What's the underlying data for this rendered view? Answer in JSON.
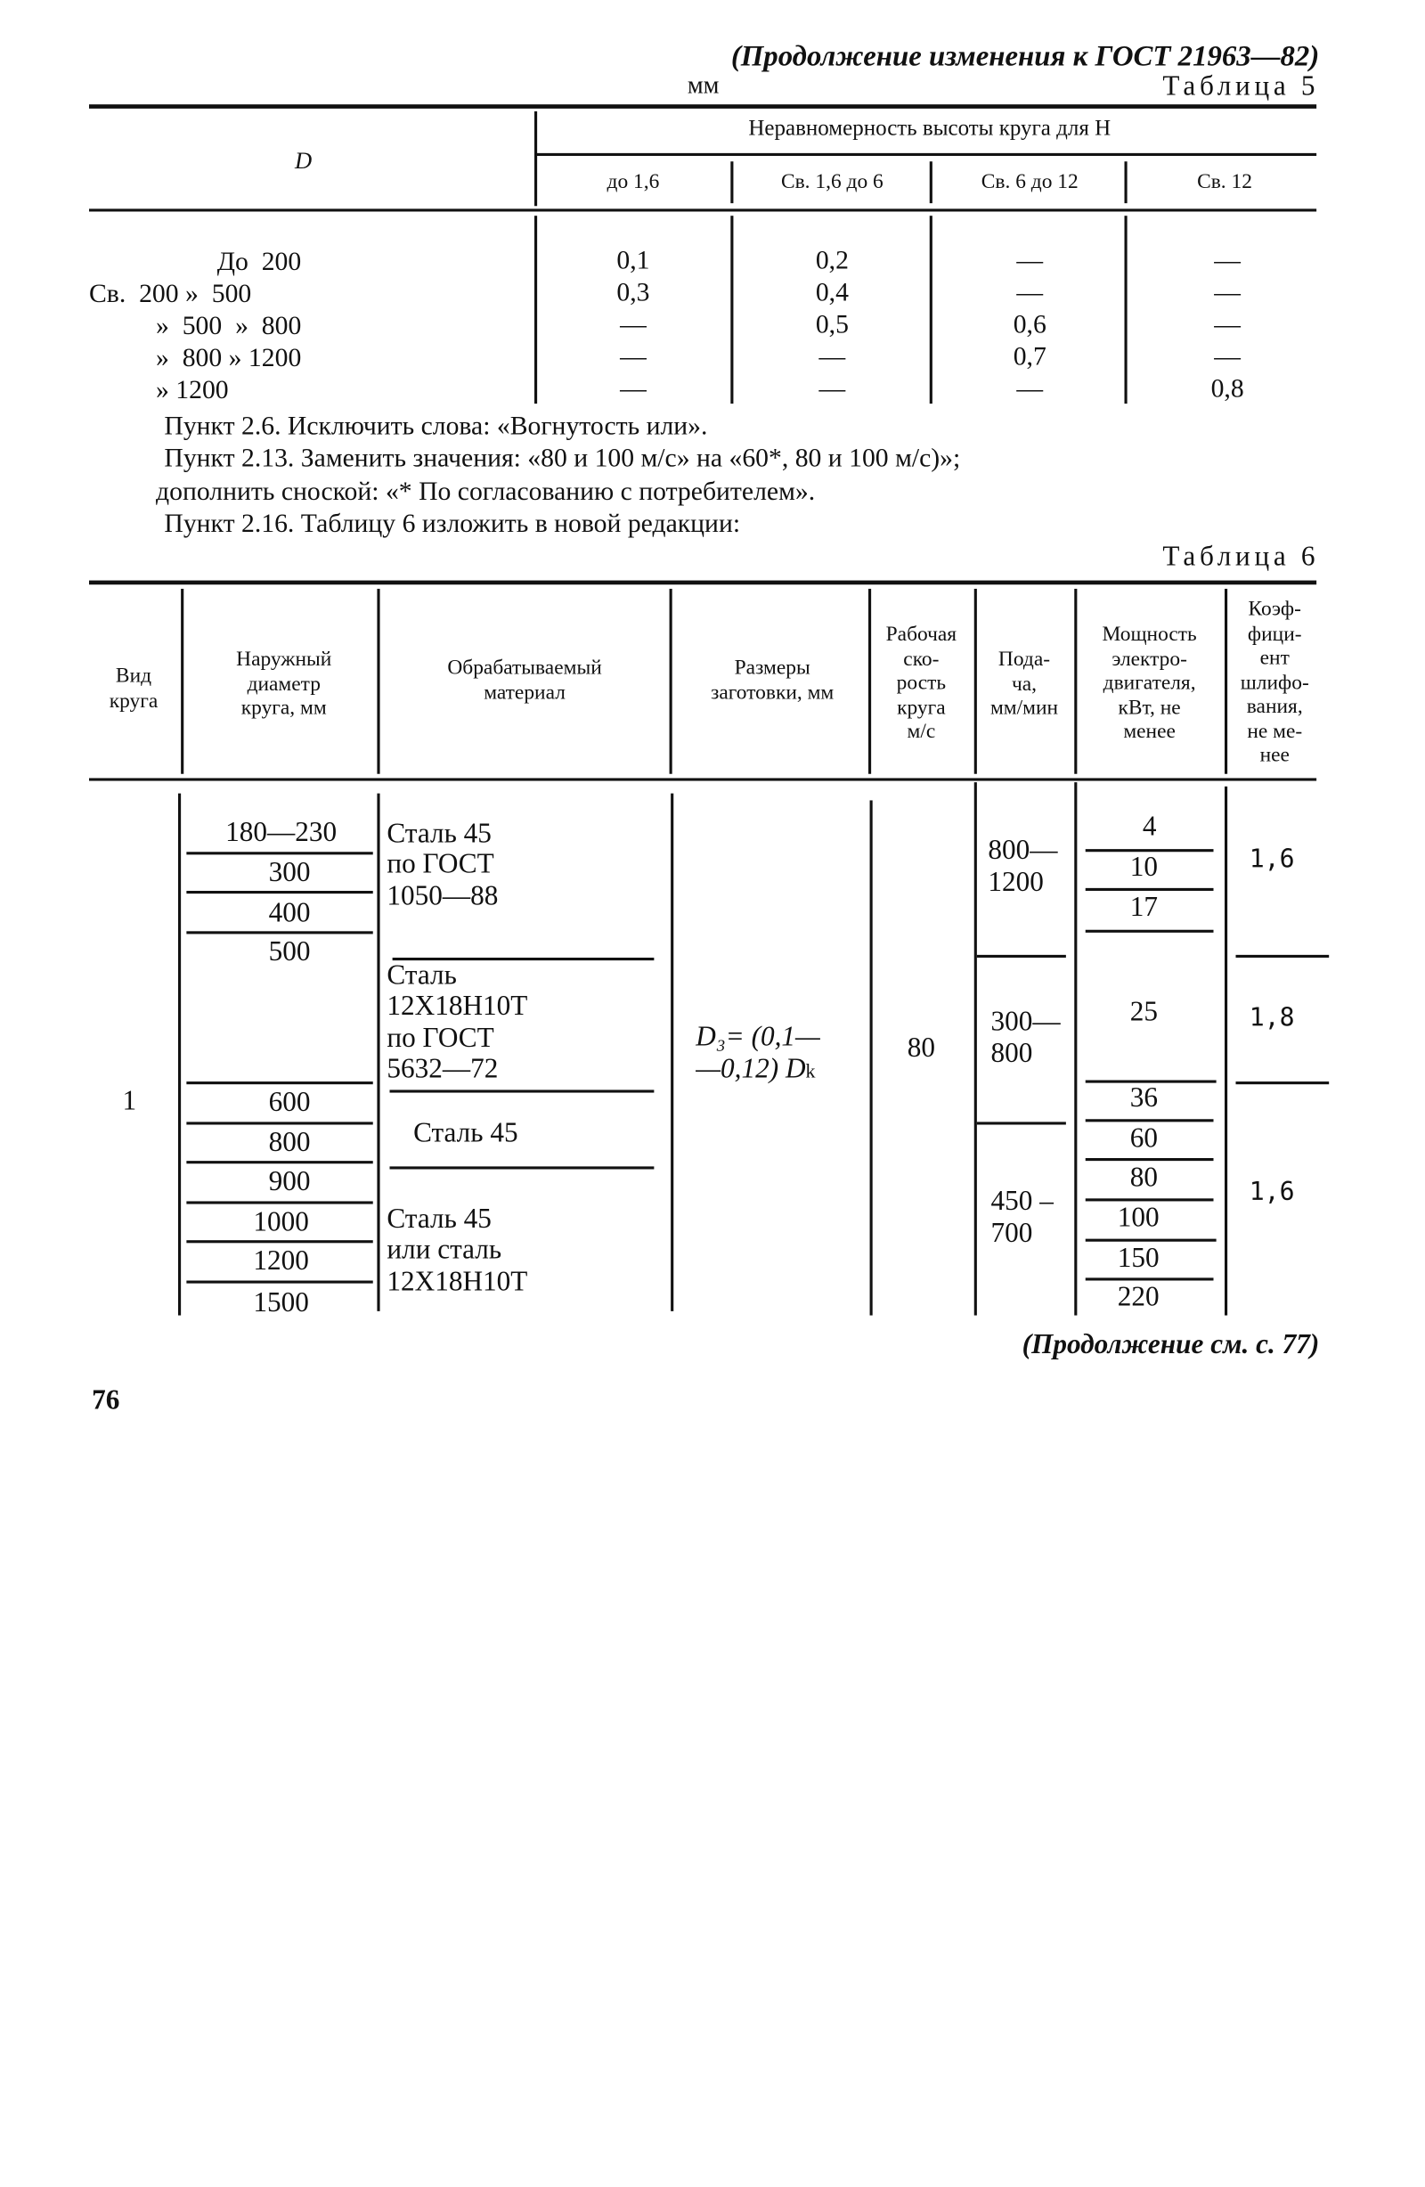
{
  "header": {
    "continuation": "(Продолжение изменения к ГОСТ 21963—82)"
  },
  "table5": {
    "unit": "мм",
    "title": "Таблица 5",
    "col_d": "D",
    "group_header": "Неравномерность высоты круга для H",
    "subheaders": [
      "до 1,6",
      "Св. 1,6 до 6",
      "Св. 6 до 12",
      "Св. 12"
    ],
    "rows": [
      {
        "d": "До  200",
        "v": [
          "0,1",
          "0,2",
          "—",
          "—"
        ]
      },
      {
        "d": "Св.  200 »  500",
        "v": [
          "0,3",
          "0,4",
          "—",
          "—"
        ]
      },
      {
        "d": "»  500  »  800",
        "v": [
          "—",
          "0,5",
          "0,6",
          "—"
        ]
      },
      {
        "d": "»  800 » 1200",
        "v": [
          "—",
          "—",
          "0,7",
          "—"
        ]
      },
      {
        "d": "» 1200",
        "v": [
          "—",
          "—",
          "—",
          "0,8"
        ]
      }
    ]
  },
  "paragraphs": [
    "Пункт 2.6. Исключить слова: «Вогнутость или».",
    "Пункт 2.13. Заменить значения: «80 и 100 м/с» на «60*, 80 и 100 м/с)»;",
    "дополнить сноской: «* По согласованию с потребителем».",
    "Пункт 2.16. Таблицу 6 изложить в новой редакции:"
  ],
  "table6": {
    "title": "Таблица 6",
    "headers": [
      "Вид\nкруга",
      "Наружный\nдиаметр\nкруга, мм",
      "Обрабатываемый\nматериал",
      "Размеры\nзаготовки, мм",
      "Рабочая\nско-\nрость\nкруга\nм/с",
      "Пода-\nча,\nмм/мин",
      "Мощность\nэлектро-\nдвигателя,\nкВт, не\nменее",
      "Коэф-\nфици-\nент\nшлифо-\nвания,\nне ме-\nнее"
    ],
    "type": "1",
    "diameters": [
      "180—230",
      "300",
      "400",
      "500",
      "600",
      "800",
      "900",
      "1000",
      "1200",
      "1500"
    ],
    "materials": [
      "Сталь 45\nпо ГОСТ\n1050—88",
      "Сталь\n12Х18Н10Т\nпо ГОСТ\n5632—72",
      "Сталь 45",
      "Сталь 45\nили сталь\n12Х18Н10Т"
    ],
    "blank_size": {
      "line1": "D₃= (0,1—",
      "line2": "—0,12) D",
      "subscript": "k"
    },
    "speed": "80",
    "feeds": [
      "800—\n1200",
      "300—\n800",
      "450 –\n700"
    ],
    "powers": [
      "4",
      "10",
      "17",
      "25",
      "36",
      "60",
      "80",
      "100",
      "150",
      "220"
    ],
    "coefficients": [
      "1,6",
      "1,8",
      "1,6"
    ]
  },
  "footer": {
    "continuation": "(Продолжение см. с. 77)",
    "page_number": "76"
  }
}
